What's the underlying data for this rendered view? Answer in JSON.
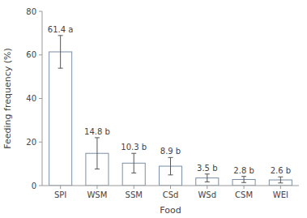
{
  "chart_data": {
    "type": "bar",
    "categories": [
      "SPI",
      "WSM",
      "SSM",
      "CSd",
      "WSd",
      "CSM",
      "WEI"
    ],
    "values": [
      61.4,
      14.8,
      10.3,
      8.9,
      3.5,
      2.8,
      2.6
    ],
    "errors": [
      7.5,
      7.2,
      4.5,
      4.0,
      1.8,
      1.4,
      1.4
    ],
    "value_labels": [
      "61.4 a",
      "14.8 b",
      "10.3 b",
      "8.9 b",
      "3.5 b",
      "2.8 b",
      "2.6 b"
    ],
    "data_labels": true,
    "color": "#ffffff",
    "xlabel": "Food",
    "ylabel": "Feeding frequency (%)",
    "ylim": [
      0,
      80
    ],
    "yticks": [
      0,
      20,
      40,
      60,
      80
    ],
    "grid": false
  }
}
